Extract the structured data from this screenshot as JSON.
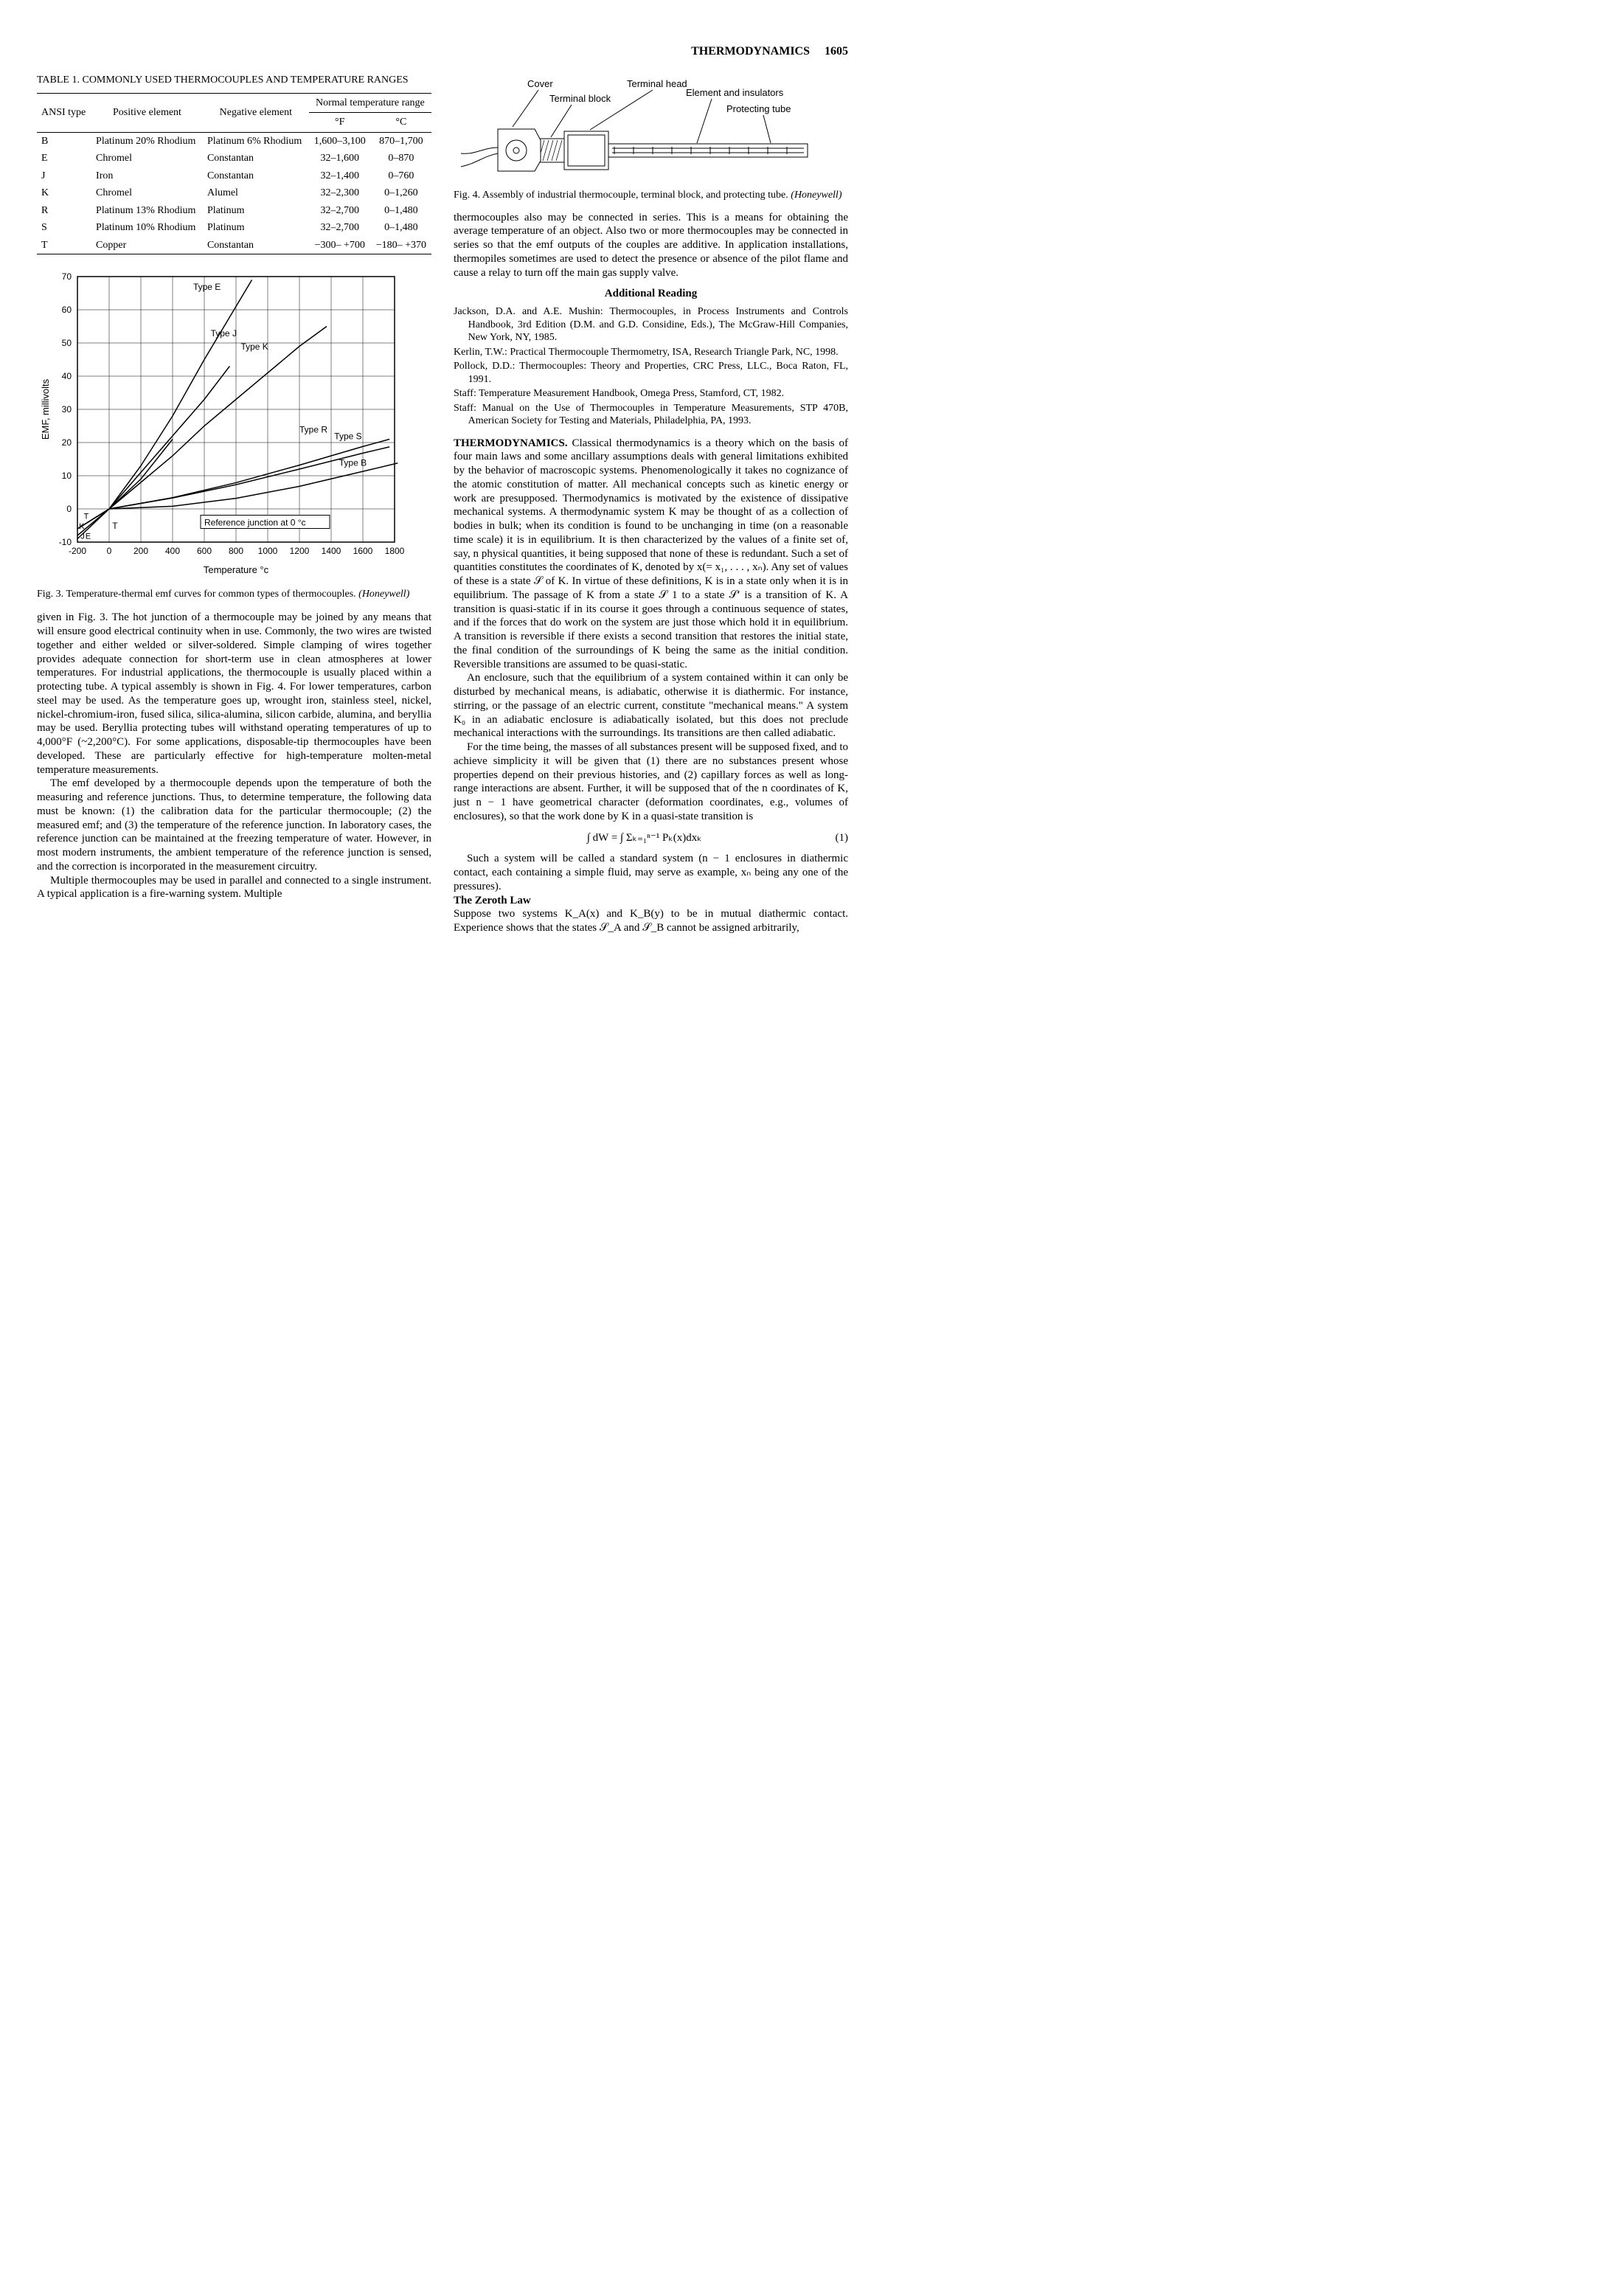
{
  "header": {
    "section": "THERMODYNAMICS",
    "page": "1605"
  },
  "table1": {
    "title": "TABLE 1. COMMONLY USED THERMOCOUPLES AND TEMPERATURE RANGES",
    "head": {
      "ansi": "ANSI type",
      "pos": "Positive element",
      "neg": "Negative element",
      "range_group": "Normal temperature range",
      "f": "°F",
      "c": "°C"
    },
    "rows": [
      {
        "type": "B",
        "pos": "Platinum 20% Rhodium",
        "neg": "Platinum 6% Rhodium",
        "f": "1,600–3,100",
        "c": "870–1,700"
      },
      {
        "type": "E",
        "pos": "Chromel",
        "neg": "Constantan",
        "f": "32–1,600",
        "c": "0–870"
      },
      {
        "type": "J",
        "pos": "Iron",
        "neg": "Constantan",
        "f": "32–1,400",
        "c": "0–760"
      },
      {
        "type": "K",
        "pos": "Chromel",
        "neg": "Alumel",
        "f": "32–2,300",
        "c": "0–1,260"
      },
      {
        "type": "R",
        "pos": "Platinum 13% Rhodium",
        "neg": "Platinum",
        "f": "32–2,700",
        "c": "0–1,480"
      },
      {
        "type": "S",
        "pos": "Platinum 10% Rhodium",
        "neg": "Platinum",
        "f": "32–2,700",
        "c": "0–1,480"
      },
      {
        "type": "T",
        "pos": "Copper",
        "neg": "Constantan",
        "f": "−300– +700",
        "c": "−180– +370"
      }
    ]
  },
  "fig3": {
    "caption_prefix": "Fig. 3.",
    "caption": "Temperature-thermal emf curves for common types of thermocouples.",
    "source": "(Honeywell)",
    "xlabel": "Temperature °c",
    "ylabel": "EMF, millivolts",
    "xlim": [
      -200,
      1800
    ],
    "ylim": [
      -10,
      70
    ],
    "xticks": [
      -200,
      0,
      200,
      400,
      600,
      800,
      1000,
      1200,
      1400,
      1600,
      1800
    ],
    "yticks": [
      -10,
      0,
      10,
      20,
      30,
      40,
      50,
      60,
      70
    ],
    "ref_note": "Reference junction at 0 °c",
    "grid_color": "#000000",
    "background_color": "#ffffff",
    "line_color": "#000000",
    "line_width": 1.5,
    "series": {
      "E": {
        "label": "Type E",
        "points": [
          [
            -200,
            -9
          ],
          [
            0,
            0
          ],
          [
            200,
            13
          ],
          [
            400,
            28
          ],
          [
            600,
            45
          ],
          [
            800,
            61
          ],
          [
            900,
            69
          ]
        ]
      },
      "J": {
        "label": "Type J",
        "points": [
          [
            -200,
            -8
          ],
          [
            0,
            0
          ],
          [
            200,
            11
          ],
          [
            400,
            22
          ],
          [
            600,
            33
          ],
          [
            760,
            43
          ]
        ]
      },
      "K": {
        "label": "Type K",
        "points": [
          [
            -200,
            -6
          ],
          [
            0,
            0
          ],
          [
            200,
            8
          ],
          [
            400,
            16
          ],
          [
            600,
            25
          ],
          [
            800,
            33
          ],
          [
            1000,
            41
          ],
          [
            1200,
            49
          ],
          [
            1372,
            55
          ]
        ]
      },
      "T": {
        "label": "T",
        "points": [
          [
            -200,
            -6
          ],
          [
            0,
            0
          ],
          [
            200,
            9
          ],
          [
            400,
            21
          ]
        ]
      },
      "R": {
        "label": "Type R",
        "points": [
          [
            0,
            0
          ],
          [
            400,
            3.4
          ],
          [
            800,
            7.9
          ],
          [
            1200,
            13.2
          ],
          [
            1600,
            18.8
          ],
          [
            1768,
            21
          ]
        ]
      },
      "S": {
        "label": "Type S",
        "points": [
          [
            0,
            0
          ],
          [
            400,
            3.3
          ],
          [
            800,
            7.3
          ],
          [
            1200,
            12
          ],
          [
            1600,
            16.8
          ],
          [
            1768,
            18.7
          ]
        ]
      },
      "B": {
        "label": "Type B",
        "points": [
          [
            0,
            0
          ],
          [
            400,
            0.8
          ],
          [
            800,
            3.2
          ],
          [
            1200,
            6.8
          ],
          [
            1600,
            11.3
          ],
          [
            1820,
            13.8
          ]
        ]
      }
    },
    "label_pos": {
      "E": [
        530,
        66
      ],
      "J": [
        640,
        52
      ],
      "K": [
        830,
        48
      ],
      "T": [
        20,
        -6
      ],
      "R": [
        1200,
        23
      ],
      "S": [
        1420,
        21
      ],
      "B": [
        1450,
        13
      ],
      "ref": [
        600,
        -5
      ]
    },
    "low_labels": {
      "K": "K",
      "J": "J",
      "E": "E"
    }
  },
  "fig4": {
    "caption_prefix": "Fig. 4.",
    "caption": "Assembly of industrial thermocouple, terminal block, and protecting tube.",
    "source": "(Honeywell)",
    "labels": {
      "cover": "Cover",
      "tblock": "Terminal block",
      "thead": "Terminal head",
      "elem": "Element and insulators",
      "ptube": "Protecting tube"
    },
    "colors": {
      "stroke": "#000000",
      "fill": "#ffffff",
      "hatch": "#000000"
    }
  },
  "left_body": {
    "p1": "given in Fig. 3. The hot junction of a thermocouple may be joined by any means that will ensure good electrical continuity when in use. Commonly, the two wires are twisted together and either welded or silver-soldered. Simple clamping of wires together provides adequate connection for short-term use in clean atmospheres at lower temperatures. For industrial applications, the thermocouple is usually placed within a protecting tube. A typical assembly is shown in Fig. 4. For lower temperatures, carbon steel may be used. As the temperature goes up, wrought iron, stainless steel, nickel, nickel-chromium-iron, fused silica, silica-alumina, silicon carbide, alumina, and beryllia may be used. Beryllia protecting tubes will withstand operating temperatures of up to 4,000°F (~2,200°C). For some applications, disposable-tip thermocouples have been developed. These are particularly effective for high-temperature molten-metal temperature measurements.",
    "p2": "The emf developed by a thermocouple depends upon the temperature of both the measuring and reference junctions. Thus, to determine temperature, the following data must be known: (1) the calibration data for the particular thermocouple; (2) the measured emf; and (3) the temperature of the reference junction. In laboratory cases, the reference junction can be maintained at the freezing temperature of water. However, in most modern instruments, the ambient temperature of the reference junction is sensed, and the correction is incorporated in the measurement circuitry.",
    "p3": "Multiple thermocouples may be used in parallel and connected to a single instrument. A typical application is a fire-warning system. Multiple"
  },
  "right_body": {
    "p1": "thermocouples also may be connected in series. This is a means for obtaining the average temperature of an object. Also two or more thermocouples may be connected in series so that the emf outputs of the couples are additive. In application installations, thermopiles sometimes are used to detect the presence or absence of the pilot flame and cause a relay to turn off the main gas supply valve.",
    "ar_head": "Additional Reading",
    "refs": [
      "Jackson, D.A. and A.E. Mushin: Thermocouples, in Process Instruments and Controls Handbook, 3rd Edition (D.M. and G.D. Considine, Eds.), The McGraw-Hill Companies, New York, NY, 1985.",
      "Kerlin, T.W.: Practical Thermocouple Thermometry, ISA, Research Triangle Park, NC, 1998.",
      "Pollock, D.D.: Thermocouples: Theory and Properties, CRC Press, LLC., Boca Raton, FL, 1991.",
      "Staff: Temperature Measurement Handbook, Omega Press, Stamford, CT, 1982.",
      "Staff: Manual on the Use of Thermocouples in Temperature Measurements, STP 470B, American Society for Testing and Materials, Philadelphia, PA, 1993."
    ],
    "entry_head": "THERMODYNAMICS.",
    "entry_p1": "Classical thermodynamics is a theory which on the basis of four main laws and some ancillary assumptions deals with general limitations exhibited by the behavior of macroscopic systems. Phenomenologically it takes no cognizance of the atomic constitution of matter. All mechanical concepts such as kinetic energy or work are presupposed. Thermodynamics is motivated by the existence of dissipative mechanical systems. A thermodynamic system K may be thought of as a collection of bodies in bulk; when its condition is found to be unchanging in time (on a reasonable time scale) it is in equilibrium. It is then characterized by the values of a finite set of, say, n physical quantities, it being supposed that none of these is redundant. Such a set of quantities constitutes the coordinates of K, denoted by x(= x₁, . . . , xₙ). Any set of values of these is a state 𝒮 of K. In virtue of these definitions, K is in a state only when it is in equilibrium. The passage of K from a state 𝒮 1 to a state 𝒮′ is a transition of K. A transition is quasi-static if in its course it goes through a continuous sequence of states, and if the forces that do work on the system are just those which hold it in equilibrium. A transition is reversible if there exists a second transition that restores the initial state, the final condition of the surroundings of K being the same as the initial condition. Reversible transitions are assumed to be quasi-static.",
    "entry_p2": "An enclosure, such that the equilibrium of a system contained within it can only be disturbed by mechanical means, is adiabatic, otherwise it is diathermic. For instance, stirring, or the passage of an electric current, constitute \"mechanical means.\" A system K₀ in an adiabatic enclosure is adiabatically isolated, but this does not preclude mechanical interactions with the surroundings. Its transitions are then called adiabatic.",
    "entry_p3": "For the time being, the masses of all substances present will be supposed fixed, and to achieve simplicity it will be given that (1) there are no substances present whose properties depend on their previous histories, and (2) capillary forces as well as long-range interactions are absent. Further, it will be supposed that of the n coordinates of K, just n − 1 have geometrical character (deformation coordinates, e.g., volumes of enclosures), so that the work done by K in a quasi-state transition is",
    "eqn": "∫ dW = ∫ Σₖ₌₁ⁿ⁻¹ Pₖ(x)dxₖ",
    "eqn_num": "(1)",
    "entry_p4": "Such a system will be called a standard system (n − 1 enclosures in diathermic contact, each containing a simple fluid, may serve as example, xₙ being any one of the pressures).",
    "zeroth_head": "The Zeroth Law",
    "zeroth_p": "Suppose two systems K_A(x) and K_B(y) to be in mutual diathermic contact. Experience shows that the states 𝒮_A and 𝒮_B cannot be assigned arbitrarily,"
  }
}
